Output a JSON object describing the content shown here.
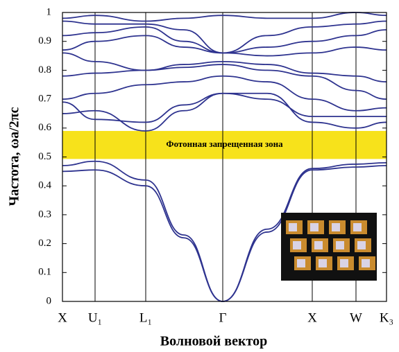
{
  "chart_data": {
    "type": "line",
    "x_label": "Волновой вектор",
    "y_label": "Частота, ωa/2πc",
    "annotation": "Фотонная запрещенная зона",
    "band_gap": [
      0.493,
      0.59
    ],
    "band_gap_color": "#f7e21b",
    "color": "#2e338f",
    "xlim": [
      0,
      467
    ],
    "ylim": [
      0,
      1
    ],
    "xticks": [
      {
        "value": 0,
        "label": "X"
      },
      {
        "value": 47,
        "label": "U₁"
      },
      {
        "value": 120,
        "label": "L₁"
      },
      {
        "value": 231,
        "label": "Γ"
      },
      {
        "value": 360,
        "label": "X"
      },
      {
        "value": 423,
        "label": "W"
      },
      {
        "value": 467,
        "label": "K₃"
      }
    ],
    "yticks": [
      0,
      0.1,
      0.2,
      0.3,
      0.4,
      0.5,
      0.6,
      0.7,
      0.8,
      0.9,
      1
    ],
    "x": [
      0,
      47,
      120,
      175,
      231,
      295,
      360,
      423,
      467
    ],
    "series": [
      {
        "values": [
          0.45,
          0.455,
          0.4,
          0.22,
          0.0,
          0.24,
          0.455,
          0.465,
          0.47
        ]
      },
      {
        "values": [
          0.47,
          0.485,
          0.42,
          0.23,
          0.0,
          0.25,
          0.46,
          0.475,
          0.48
        ]
      },
      {
        "values": [
          0.65,
          0.66,
          0.59,
          0.66,
          0.72,
          0.72,
          0.62,
          0.6,
          0.62
        ]
      },
      {
        "values": [
          0.69,
          0.63,
          0.62,
          0.68,
          0.72,
          0.7,
          0.64,
          0.64,
          0.64
        ]
      },
      {
        "values": [
          0.7,
          0.72,
          0.75,
          0.76,
          0.78,
          0.76,
          0.7,
          0.66,
          0.67
        ]
      },
      {
        "values": [
          0.78,
          0.79,
          0.8,
          0.81,
          0.82,
          0.8,
          0.78,
          0.73,
          0.7
        ]
      },
      {
        "values": [
          0.86,
          0.83,
          0.8,
          0.82,
          0.83,
          0.82,
          0.79,
          0.78,
          0.76
        ]
      },
      {
        "values": [
          0.87,
          0.9,
          0.92,
          0.88,
          0.86,
          0.85,
          0.86,
          0.88,
          0.87
        ]
      },
      {
        "values": [
          0.92,
          0.93,
          0.95,
          0.9,
          0.86,
          0.88,
          0.9,
          0.92,
          0.94
        ]
      },
      {
        "values": [
          0.97,
          0.96,
          0.96,
          0.94,
          0.86,
          0.92,
          0.95,
          0.96,
          0.97
        ]
      },
      {
        "values": [
          0.98,
          0.99,
          0.97,
          0.98,
          0.99,
          0.98,
          0.98,
          1.0,
          0.99
        ]
      }
    ]
  }
}
